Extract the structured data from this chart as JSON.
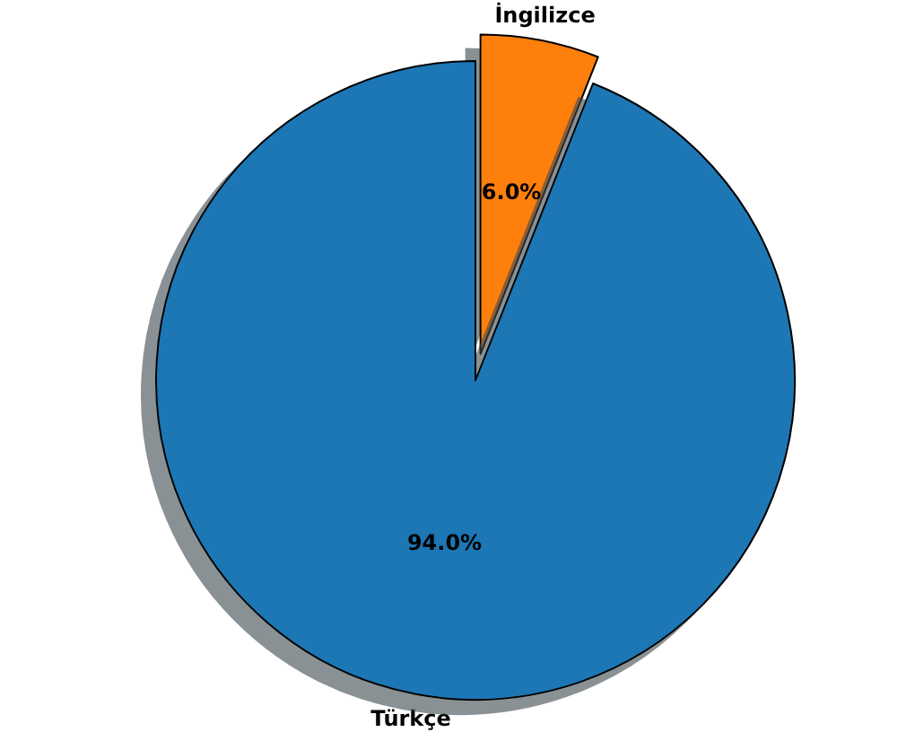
{
  "chart_data": {
    "type": "pie",
    "categories": [
      "İngilizce",
      "Türkçe"
    ],
    "values": [
      6.0,
      94.0
    ],
    "colors": [
      "#ff7f0e",
      "#1f77b4"
    ],
    "value_labels": [
      "6.0%",
      "94.0%"
    ],
    "legend": false
  }
}
